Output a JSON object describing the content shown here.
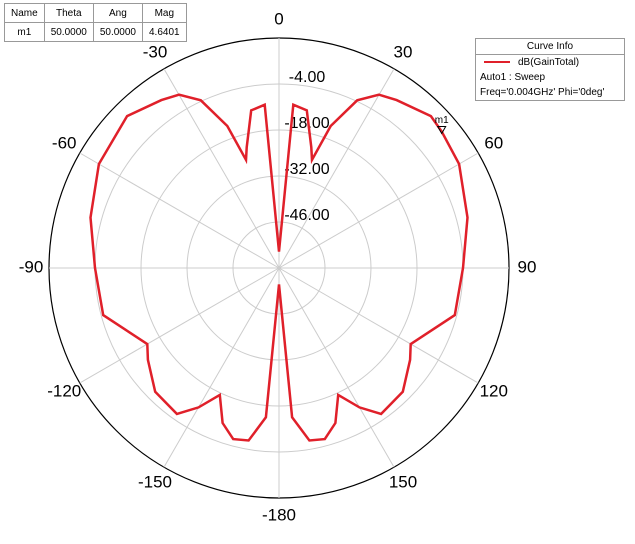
{
  "chart_data": {
    "type": "polar",
    "x": [
      -180,
      -175,
      -170,
      -165,
      -160,
      -155,
      -150,
      -145,
      -135,
      -125,
      -120,
      -105,
      -90,
      -75,
      -60,
      -45,
      -35,
      -30,
      -25,
      -20,
      -17,
      -15,
      -10,
      -5,
      0,
      5,
      10,
      15,
      17,
      20,
      25,
      30,
      35,
      45,
      50,
      60,
      75,
      90,
      105,
      120,
      125,
      135,
      145,
      150,
      155,
      160,
      165,
      170,
      175,
      180
    ],
    "series": [
      {
        "name": "dB(GainTotal)",
        "color": "#e0202a",
        "values": [
          -55,
          -14.4,
          -6.7,
          -6.1,
          -9.8,
          -17.4,
          -11,
          -5.8,
          -6.7,
          -11.3,
          -13.7,
          -4.6,
          -4,
          -0.6,
          3.3,
          5.4,
          2.4,
          0.9,
          -3.7,
          -14,
          -25.6,
          -22,
          -11.3,
          -10.1,
          -55,
          -10.1,
          -11.3,
          -22,
          -25.6,
          -14,
          -3.7,
          0.9,
          2.4,
          5.4,
          4.6401,
          3.3,
          -0.6,
          -4,
          -4.6,
          -13.7,
          -11.3,
          -6.7,
          -5.8,
          -11,
          -17.4,
          -9.8,
          -6.1,
          -6.7,
          -14.4,
          -55
        ]
      }
    ],
    "rlim": [
      -60,
      10
    ],
    "rticks": [
      {
        "value": -46,
        "label": "-46.00"
      },
      {
        "value": -32,
        "label": "-32.00"
      },
      {
        "value": -18,
        "label": "-18.00"
      },
      {
        "value": -4,
        "label": "-4.00"
      }
    ],
    "thetaticks": [
      0,
      30,
      60,
      90,
      120,
      150,
      -180,
      -150,
      -120,
      -90,
      -60,
      -30
    ],
    "grid": true,
    "markers": [
      {
        "name": "m1",
        "x": 50,
        "value": 4.6401
      }
    ],
    "marker_table": {
      "header": [
        "Name",
        "Theta",
        "Ang",
        "Mag"
      ],
      "rows": [
        [
          "m1",
          "50.0000",
          "50.0000",
          "4.6401"
        ]
      ]
    },
    "legend": {
      "title": "Curve Info",
      "lines": [
        "Auto1 : Sweep",
        "Freq='0.004GHz' Phi='0deg'"
      ]
    }
  }
}
